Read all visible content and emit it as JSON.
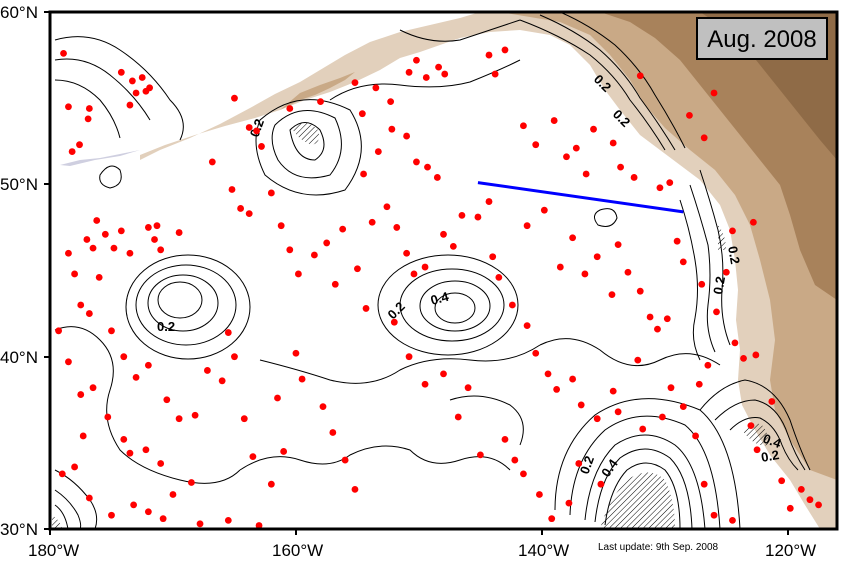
{
  "date_box": {
    "label": "Aug. 2008"
  },
  "footer": {
    "last_update": "Last update: 9th Sep. 2008"
  },
  "axes": {
    "x_ticks": [
      "180°W",
      "160°W",
      "140°W",
      "120°W"
    ],
    "y_ticks": [
      "30°N",
      "40°N",
      "50°N",
      "60°N"
    ]
  },
  "contour_labels": [
    "0.2",
    "0.2",
    "0.2",
    "0.4",
    "0.2",
    "0.4",
    "0.2",
    "0.4",
    "0.2",
    "0.2",
    "0.2",
    "0.2"
  ],
  "colors": {
    "float_marker": "#ff0000",
    "section_line": "#0000ff",
    "land_light": "#e2d0bc",
    "land_mid": "#c9a986",
    "land_dark": "#a8825b",
    "contour": "#000000",
    "date_box_fill": "#c0c0c0"
  },
  "map_extent": {
    "lon_min": -180,
    "lon_max": -116,
    "lat_min": 30,
    "lat_max": 60
  },
  "section_line": [
    {
      "lon": -145.2,
      "lat": 50.1
    },
    {
      "lon": -128.5,
      "lat": 48.4
    }
  ],
  "floats": [
    [
      -178.9,
      57.6
    ],
    [
      -178.5,
      54.5
    ],
    [
      -176.8,
      54.4
    ],
    [
      -176.9,
      53.8
    ],
    [
      -177.6,
      52.3
    ],
    [
      -178.2,
      51.9
    ],
    [
      -174.2,
      56.5
    ],
    [
      -173.3,
      56.0
    ],
    [
      -172.5,
      56.2
    ],
    [
      -173.0,
      55.3
    ],
    [
      -172.2,
      55.4
    ],
    [
      -173.5,
      54.6
    ],
    [
      -171.9,
      55.6
    ],
    [
      -176.2,
      47.9
    ],
    [
      -175.5,
      47.1
    ],
    [
      -177.0,
      46.8
    ],
    [
      -176.5,
      46.3
    ],
    [
      -174.8,
      46.3
    ],
    [
      -174.2,
      47.3
    ],
    [
      -172.0,
      47.5
    ],
    [
      -171.3,
      47.6
    ],
    [
      -171.5,
      46.8
    ],
    [
      -171.0,
      46.2
    ],
    [
      -169.5,
      47.2
    ],
    [
      -173.5,
      46.0
    ],
    [
      -178.5,
      46.0
    ],
    [
      -178.0,
      44.8
    ],
    [
      -177.5,
      43.0
    ],
    [
      -176.8,
      42.5
    ],
    [
      -176.0,
      44.6
    ],
    [
      -175.0,
      41.5
    ],
    [
      -174.0,
      40.0
    ],
    [
      -173.0,
      38.8
    ],
    [
      -172.0,
      39.5
    ],
    [
      -179.3,
      41.5
    ],
    [
      -178.5,
      39.7
    ],
    [
      -177.5,
      37.8
    ],
    [
      -176.5,
      38.2
    ],
    [
      -175.3,
      36.5
    ],
    [
      -174.0,
      35.2
    ],
    [
      -173.5,
      34.4
    ],
    [
      -172.2,
      34.6
    ],
    [
      -171.0,
      33.8
    ],
    [
      -170.5,
      37.5
    ],
    [
      -169.5,
      36.4
    ],
    [
      -168.2,
      36.6
    ],
    [
      -179.0,
      33.2
    ],
    [
      -178.0,
      33.6
    ],
    [
      -177.3,
      35.4
    ],
    [
      -176.8,
      31.8
    ],
    [
      -175.0,
      30.8
    ],
    [
      -173.2,
      31.4
    ],
    [
      -172.0,
      31.0
    ],
    [
      -170.8,
      30.6
    ],
    [
      -170.0,
      32.0
    ],
    [
      -168.5,
      32.7
    ],
    [
      -167.8,
      30.3
    ],
    [
      -165.5,
      30.5
    ],
    [
      -163.0,
      30.2
    ],
    [
      -162.0,
      32.6
    ],
    [
      -167.2,
      39.2
    ],
    [
      -166.0,
      38.6
    ],
    [
      -165.5,
      41.4
    ],
    [
      -165.0,
      40.0
    ],
    [
      -164.2,
      36.4
    ],
    [
      -163.5,
      34.2
    ],
    [
      -161.5,
      37.6
    ],
    [
      -161.0,
      34.5
    ],
    [
      -160.0,
      40.2
    ],
    [
      -159.5,
      38.7
    ],
    [
      -157.8,
      37.1
    ],
    [
      -157.0,
      35.6
    ],
    [
      -156.0,
      34.0
    ],
    [
      -155.2,
      32.3
    ],
    [
      -166.8,
      51.3
    ],
    [
      -165.2,
      49.7
    ],
    [
      -164.5,
      48.6
    ],
    [
      -163.8,
      48.3
    ],
    [
      -162.8,
      52.2
    ],
    [
      -162.0,
      49.5
    ],
    [
      -161.2,
      47.6
    ],
    [
      -160.5,
      46.2
    ],
    [
      -159.8,
      44.8
    ],
    [
      -158.5,
      45.9
    ],
    [
      -157.5,
      46.6
    ],
    [
      -156.8,
      44.2
    ],
    [
      -156.2,
      47.4
    ],
    [
      -155.0,
      45.1
    ],
    [
      -154.3,
      42.8
    ],
    [
      -165.0,
      55.0
    ],
    [
      -163.8,
      53.3
    ],
    [
      -163.2,
      53.1
    ],
    [
      -160.5,
      54.4
    ],
    [
      -158.0,
      54.8
    ],
    [
      -155.2,
      55.9
    ],
    [
      -154.6,
      54.1
    ],
    [
      -153.5,
      55.6
    ],
    [
      -152.3,
      54.8
    ],
    [
      -150.8,
      56.5
    ],
    [
      -150.2,
      57.2
    ],
    [
      -149.4,
      56.2
    ],
    [
      -148.4,
      56.8
    ],
    [
      -147.9,
      56.4
    ],
    [
      -154.5,
      50.6
    ],
    [
      -153.3,
      51.9
    ],
    [
      -152.2,
      53.2
    ],
    [
      -151.0,
      52.8
    ],
    [
      -150.2,
      51.3
    ],
    [
      -149.3,
      51.0
    ],
    [
      -148.5,
      50.4
    ],
    [
      -148.0,
      47.1
    ],
    [
      -147.2,
      46.4
    ],
    [
      -146.5,
      48.2
    ],
    [
      -145.2,
      48.1
    ],
    [
      -144.3,
      49.0
    ],
    [
      -153.8,
      47.8
    ],
    [
      -152.6,
      48.7
    ],
    [
      -151.8,
      47.5
    ],
    [
      -151.0,
      46.0
    ],
    [
      -150.4,
      44.8
    ],
    [
      -149.5,
      45.2
    ],
    [
      -152.0,
      42.0
    ],
    [
      -150.8,
      40.0
    ],
    [
      -149.5,
      38.4
    ],
    [
      -148.0,
      39.0
    ],
    [
      -146.8,
      36.5
    ],
    [
      -146.0,
      38.2
    ],
    [
      -145.0,
      34.3
    ],
    [
      -144.3,
      57.5
    ],
    [
      -143.8,
      56.4
    ],
    [
      -143.0,
      57.8
    ],
    [
      -141.5,
      53.4
    ],
    [
      -140.5,
      52.3
    ],
    [
      -139.0,
      53.7
    ],
    [
      -138.0,
      51.6
    ],
    [
      -137.2,
      52.1
    ],
    [
      -136.4,
      50.6
    ],
    [
      -135.8,
      53.2
    ],
    [
      -134.2,
      52.4
    ],
    [
      -133.6,
      51.0
    ],
    [
      -132.5,
      50.4
    ],
    [
      -132.0,
      56.3
    ],
    [
      -141.2,
      47.6
    ],
    [
      -139.8,
      48.5
    ],
    [
      -138.5,
      45.2
    ],
    [
      -137.5,
      46.9
    ],
    [
      -136.5,
      44.8
    ],
    [
      -135.5,
      45.8
    ],
    [
      -134.3,
      43.6
    ],
    [
      -133.8,
      46.5
    ],
    [
      -133.0,
      44.9
    ],
    [
      -132.0,
      43.8
    ],
    [
      -131.2,
      42.3
    ],
    [
      -130.6,
      41.6
    ],
    [
      -129.8,
      42.2
    ],
    [
      -144.0,
      45.8
    ],
    [
      -143.5,
      44.6
    ],
    [
      -142.4,
      43.0
    ],
    [
      -141.2,
      41.8
    ],
    [
      -140.5,
      40.2
    ],
    [
      -139.5,
      39.0
    ],
    [
      -138.8,
      38.1
    ],
    [
      -137.5,
      38.7
    ],
    [
      -136.8,
      37.2
    ],
    [
      -135.5,
      36.4
    ],
    [
      -134.2,
      38.0
    ],
    [
      -133.8,
      36.8
    ],
    [
      -132.2,
      39.8
    ],
    [
      -143.0,
      35.2
    ],
    [
      -142.2,
      34.0
    ],
    [
      -141.5,
      33.2
    ],
    [
      -140.2,
      32.0
    ],
    [
      -139.2,
      30.6
    ],
    [
      -137.8,
      31.5
    ],
    [
      -137.0,
      33.8
    ],
    [
      -135.2,
      32.6
    ],
    [
      -131.8,
      35.8
    ],
    [
      -130.2,
      36.5
    ],
    [
      -129.5,
      38.2
    ],
    [
      -128.5,
      37.1
    ],
    [
      -127.2,
      38.4
    ],
    [
      -126.5,
      39.5
    ],
    [
      -127.5,
      35.4
    ],
    [
      -126.8,
      32.6
    ],
    [
      -126.0,
      30.8
    ],
    [
      -124.5,
      30.5
    ],
    [
      -123.0,
      36.0
    ],
    [
      -122.5,
      34.6
    ],
    [
      -121.3,
      37.4
    ],
    [
      -120.5,
      32.8
    ],
    [
      -119.8,
      31.2
    ],
    [
      -118.9,
      32.3
    ],
    [
      -118.2,
      31.7
    ],
    [
      -117.5,
      31.4
    ],
    [
      -129.0,
      46.7
    ],
    [
      -128.5,
      45.5
    ],
    [
      -127.0,
      44.2
    ],
    [
      -125.8,
      42.6
    ],
    [
      -125.0,
      44.9
    ],
    [
      -124.3,
      40.8
    ],
    [
      -123.6,
      39.9
    ],
    [
      -122.6,
      40.1
    ],
    [
      -124.5,
      47.3
    ],
    [
      -122.8,
      47.8
    ],
    [
      -128.0,
      54.0
    ],
    [
      -126.8,
      52.7
    ],
    [
      -126.0,
      55.3
    ],
    [
      -130.4,
      49.8
    ],
    [
      -129.6,
      50.1
    ]
  ]
}
